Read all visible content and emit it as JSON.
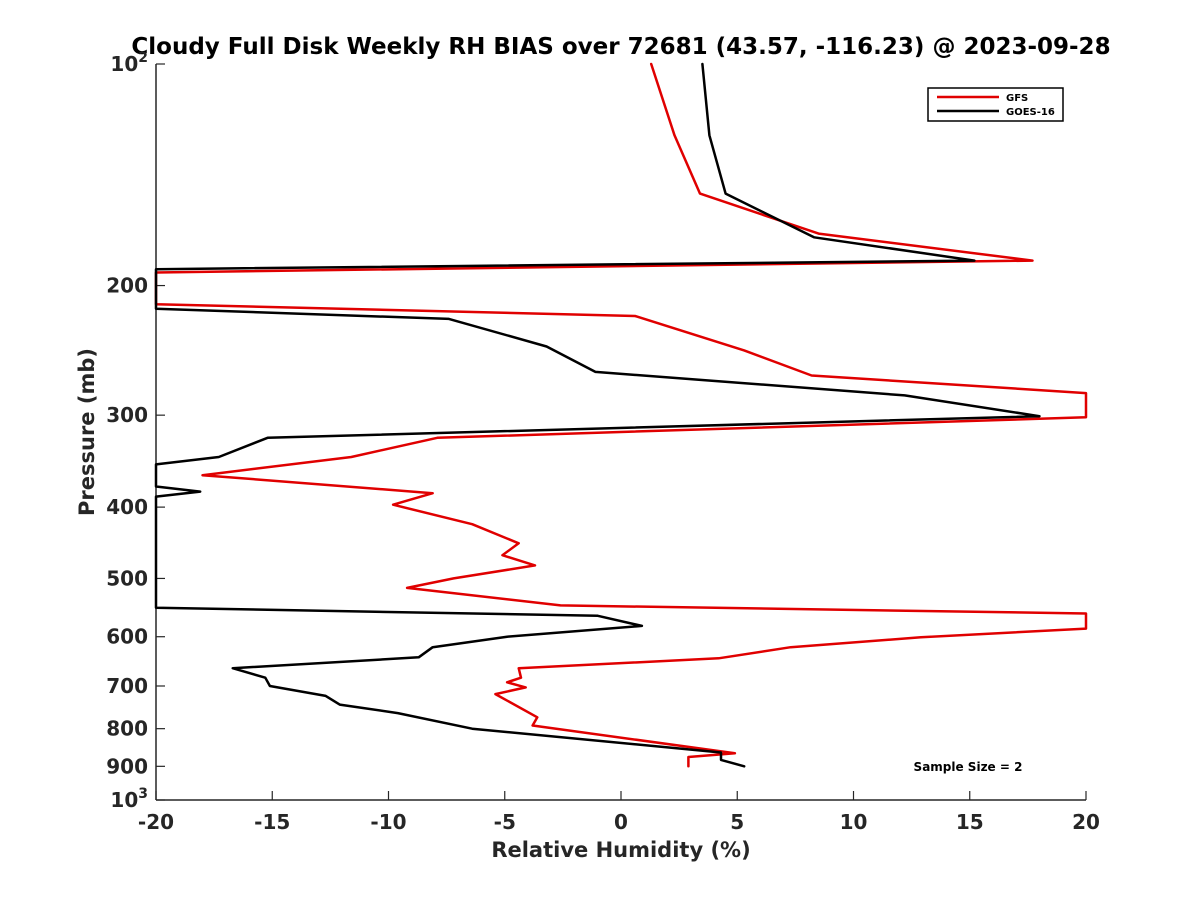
{
  "chart_data": {
    "type": "line",
    "title": "Cloudy Full Disk Weekly RH BIAS over 72681 (43.57, -116.23) @ 2023-09-28",
    "xlabel": "Relative Humidity (%)",
    "ylabel": "Pressure (mb)",
    "xlim": [
      -20,
      20
    ],
    "ylim": [
      100,
      1000
    ],
    "y_scale": "log",
    "y_reversed": true,
    "grid": false,
    "legend_position": "top-right",
    "annotation": "Sample Size = 2",
    "x_ticks": [
      -20,
      -15,
      -10,
      -5,
      0,
      5,
      10,
      15,
      20
    ],
    "x_tick_labels": [
      "-20",
      "-15",
      "-10",
      "-5",
      "0",
      "5",
      "10",
      "15",
      "20"
    ],
    "y_ticks": [
      {
        "value": 100,
        "base": "10",
        "exp": "2"
      },
      {
        "value": 200,
        "label": "200"
      },
      {
        "value": 300,
        "label": "300"
      },
      {
        "value": 400,
        "label": "400"
      },
      {
        "value": 500,
        "label": "500"
      },
      {
        "value": 600,
        "label": "600"
      },
      {
        "value": 700,
        "label": "700"
      },
      {
        "value": 800,
        "label": "800"
      },
      {
        "value": 900,
        "label": "900"
      },
      {
        "value": 1000,
        "base": "10",
        "exp": "3"
      }
    ],
    "series": [
      {
        "name": "GFS",
        "color": "#e00000",
        "points": [
          [
            1.3,
            100
          ],
          [
            2.3,
            125
          ],
          [
            3.4,
            150
          ],
          [
            8.5,
            170
          ],
          [
            17.7,
            185
          ],
          [
            -20,
            192
          ],
          [
            -20,
            212
          ],
          [
            0.6,
            220
          ],
          [
            5.3,
            245
          ],
          [
            8.2,
            265
          ],
          [
            20,
            280
          ],
          [
            20,
            302
          ],
          [
            -7.9,
            322
          ],
          [
            -11.6,
            342
          ],
          [
            -18,
            362
          ],
          [
            -8.1,
            383
          ],
          [
            -9.8,
            397
          ],
          [
            -6.4,
            422
          ],
          [
            -4.4,
            448
          ],
          [
            -5.1,
            465
          ],
          [
            -3.7,
            480
          ],
          [
            -7.2,
            500
          ],
          [
            -9.2,
            515
          ],
          [
            -2.6,
            544
          ],
          [
            20,
            558
          ],
          [
            20,
            585
          ],
          [
            12.9,
            601
          ],
          [
            7.3,
            620
          ],
          [
            4.2,
            642
          ],
          [
            -4.4,
            662
          ],
          [
            -4.3,
            682
          ],
          [
            -4.9,
            692
          ],
          [
            -4.1,
            703
          ],
          [
            -5.4,
            718
          ],
          [
            -3.6,
            772
          ],
          [
            -3.8,
            792
          ],
          [
            4.9,
            864
          ],
          [
            2.9,
            874
          ],
          [
            2.9,
            900
          ]
        ]
      },
      {
        "name": "GOES-16",
        "color": "#000000",
        "points": [
          [
            3.5,
            100
          ],
          [
            3.8,
            125
          ],
          [
            4.5,
            150
          ],
          [
            8.3,
            172
          ],
          [
            15.2,
            185
          ],
          [
            -20,
            190
          ],
          [
            -20,
            215
          ],
          [
            -7.4,
            222
          ],
          [
            -3.2,
            242
          ],
          [
            -1.1,
            262
          ],
          [
            12.2,
            282
          ],
          [
            18,
            301
          ],
          [
            -15.2,
            322
          ],
          [
            -17.3,
            342
          ],
          [
            -20,
            350
          ],
          [
            -20,
            375
          ],
          [
            -18.1,
            381
          ],
          [
            -20,
            387
          ],
          [
            -20,
            548
          ],
          [
            -1,
            562
          ],
          [
            0.9,
            580
          ],
          [
            -4.9,
            600
          ],
          [
            -8.1,
            620
          ],
          [
            -8.7,
            640
          ],
          [
            -16.7,
            662
          ],
          [
            -15.3,
            682
          ],
          [
            -15.1,
            700
          ],
          [
            -12.7,
            722
          ],
          [
            -12.1,
            742
          ],
          [
            -9.6,
            762
          ],
          [
            -6.4,
            800
          ],
          [
            4.3,
            862
          ],
          [
            4.3,
            882
          ],
          [
            5.3,
            900
          ]
        ]
      }
    ]
  }
}
